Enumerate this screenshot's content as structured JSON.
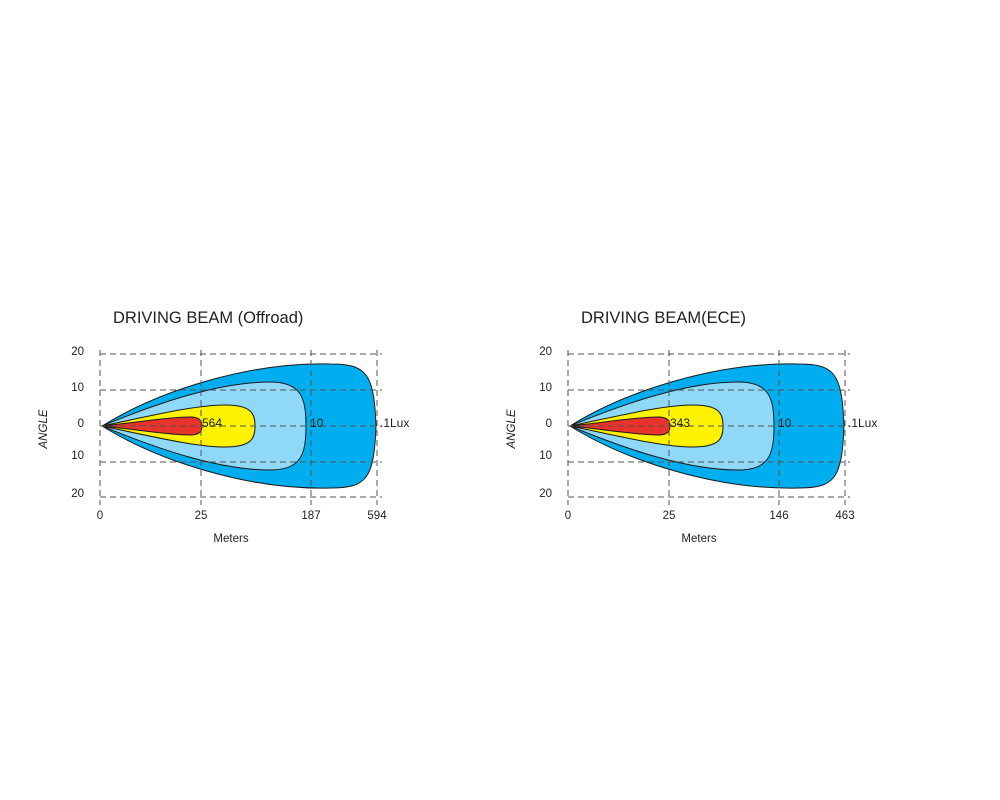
{
  "chart_data": [
    {
      "type": "area",
      "title": "DRIVING BEAM (Offroad)",
      "xlabel": "Meters",
      "ylabel": "ANGLE",
      "y_ticks": [
        "20",
        "10",
        "0",
        "10",
        "20"
      ],
      "x_ticks": [
        "0",
        "25",
        "187",
        "594"
      ],
      "isolux": [
        {
          "label": "564",
          "reach_tick": "25"
        },
        {
          "label": "10",
          "reach_tick": "187"
        },
        {
          "label": ".1Lux",
          "reach_tick": "594"
        }
      ],
      "grid": true
    },
    {
      "type": "area",
      "title": "DRIVING BEAM(ECE)",
      "xlabel": "Meters",
      "ylabel": "ANGLE",
      "y_ticks": [
        "20",
        "10",
        "0",
        "10",
        "20"
      ],
      "x_ticks": [
        "0",
        "25",
        "146",
        "463"
      ],
      "isolux": [
        {
          "label": "343",
          "reach_tick": "25"
        },
        {
          "label": "10",
          "reach_tick": "146"
        },
        {
          "label": ".1Lux",
          "reach_tick": "463"
        }
      ],
      "grid": true
    }
  ],
  "colors": {
    "outer_zone": "#00aeef",
    "mid_zone": "#8fd8f8",
    "inner_zone": "#fff200",
    "core_zone": "#e8332c",
    "grid_line": "#555555"
  }
}
